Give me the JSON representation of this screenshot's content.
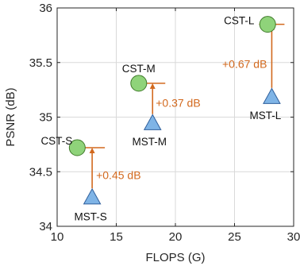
{
  "chart_data": {
    "type": "scatter",
    "title": "",
    "xlabel": "FLOPS (G)",
    "ylabel": "PSNR (dB)",
    "xlim": [
      10,
      30
    ],
    "ylim": [
      34,
      36
    ],
    "xticks": [
      10,
      15,
      20,
      25,
      30
    ],
    "yticks": [
      34,
      34.5,
      35,
      35.5,
      36
    ],
    "xtick_labels": [
      "10",
      "15",
      "20",
      "25",
      "30"
    ],
    "ytick_labels": [
      "34",
      "34.5",
      "35",
      "35.5",
      "36"
    ],
    "grid": true,
    "legend": "none",
    "colors": {
      "cst": "#8fd37a",
      "cst_stroke": "#3f7a2a",
      "mst": "#7fb4e6",
      "mst_stroke": "#2f5f9c",
      "annotation": "#d2691e",
      "grid": "#d9d9d9",
      "axis": "#262626"
    },
    "series": [
      {
        "key": "cst",
        "marker": "circle",
        "points": [
          {
            "label": "CST-S",
            "x": 11.7,
            "y": 34.72
          },
          {
            "label": "CST-M",
            "x": 16.9,
            "y": 35.31
          },
          {
            "label": "CST-L",
            "x": 27.8,
            "y": 35.85
          }
        ]
      },
      {
        "key": "mst",
        "marker": "triangle",
        "points": [
          {
            "label": "MST-S",
            "x": 12.96,
            "y": 34.26
          },
          {
            "label": "MST-M",
            "x": 18.07,
            "y": 34.94
          },
          {
            "label": "MST-L",
            "x": 28.15,
            "y": 35.18
          }
        ]
      }
    ],
    "annotations": [
      {
        "text": "+0.45 dB",
        "x": 12.96,
        "y_from": 34.26,
        "y_to": 34.72
      },
      {
        "text": "+0.37 dB",
        "x": 18.07,
        "y_from": 34.94,
        "y_to": 35.31
      },
      {
        "text": "+0.67 dB",
        "x": 28.15,
        "y_from": 35.18,
        "y_to": 35.85
      }
    ]
  }
}
